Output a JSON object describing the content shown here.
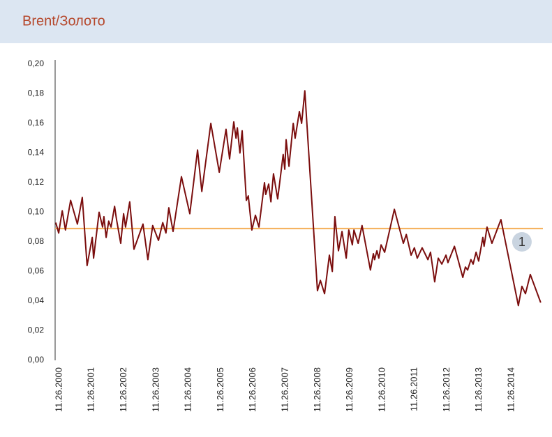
{
  "chart_data": {
    "type": "line",
    "title": "Brent/Золото",
    "series": [
      {
        "name": "Brent/Золото",
        "color": "#7b0e0e",
        "x": [
          2000.79,
          2000.88,
          2000.99,
          2001.09,
          2001.25,
          2001.46,
          2001.61,
          2001.76,
          2001.92,
          2001.96,
          2002.13,
          2002.24,
          2002.28,
          2002.35,
          2002.43,
          2002.5,
          2002.61,
          2002.67,
          2002.8,
          2002.89,
          2002.95,
          2003.08,
          2003.21,
          2003.49,
          2003.64,
          2003.79,
          2003.97,
          2004.1,
          2004.2,
          2004.29,
          2004.42,
          2004.68,
          2004.94,
          2005.18,
          2005.31,
          2005.59,
          2005.85,
          2006.06,
          2006.17,
          2006.3,
          2006.37,
          2006.41,
          2006.49,
          2006.56,
          2006.69,
          2006.75,
          2006.86,
          2006.97,
          2007.08,
          2007.25,
          2007.29,
          2007.38,
          2007.45,
          2007.53,
          2007.66,
          2007.83,
          2007.88,
          2007.92,
          2008.01,
          2008.14,
          2008.2,
          2008.33,
          2008.4,
          2008.5,
          2008.89,
          2008.98,
          2009.11,
          2009.26,
          2009.35,
          2009.43,
          2009.54,
          2009.65,
          2009.78,
          2009.86,
          2009.97,
          2010.02,
          2010.15,
          2010.27,
          2010.53,
          2010.62,
          2010.66,
          2010.73,
          2010.79,
          2010.86,
          2010.97,
          2011.27,
          2011.55,
          2011.64,
          2011.79,
          2011.89,
          2011.98,
          2012.13,
          2012.31,
          2012.39,
          2012.52,
          2012.63,
          2012.74,
          2012.87,
          2012.93,
          2013.13,
          2013.39,
          2013.47,
          2013.54,
          2013.64,
          2013.71,
          2013.8,
          2013.88,
          2014.01,
          2014.05,
          2014.14,
          2014.29,
          2014.57,
          2015.11,
          2015.22,
          2015.33,
          2015.48,
          2015.8
        ],
        "values": [
          0.093,
          0.086,
          0.101,
          0.088,
          0.108,
          0.092,
          0.11,
          0.064,
          0.083,
          0.069,
          0.1,
          0.09,
          0.097,
          0.083,
          0.094,
          0.09,
          0.104,
          0.095,
          0.079,
          0.099,
          0.09,
          0.107,
          0.075,
          0.092,
          0.068,
          0.091,
          0.081,
          0.093,
          0.086,
          0.103,
          0.087,
          0.124,
          0.099,
          0.142,
          0.114,
          0.16,
          0.127,
          0.156,
          0.136,
          0.161,
          0.15,
          0.157,
          0.14,
          0.155,
          0.108,
          0.111,
          0.088,
          0.098,
          0.09,
          0.12,
          0.112,
          0.119,
          0.107,
          0.126,
          0.109,
          0.139,
          0.129,
          0.149,
          0.131,
          0.16,
          0.15,
          0.168,
          0.16,
          0.182,
          0.047,
          0.054,
          0.045,
          0.071,
          0.06,
          0.097,
          0.074,
          0.087,
          0.069,
          0.088,
          0.078,
          0.088,
          0.079,
          0.091,
          0.061,
          0.072,
          0.068,
          0.074,
          0.069,
          0.078,
          0.073,
          0.102,
          0.079,
          0.085,
          0.071,
          0.076,
          0.069,
          0.076,
          0.068,
          0.073,
          0.053,
          0.069,
          0.065,
          0.071,
          0.066,
          0.077,
          0.056,
          0.063,
          0.061,
          0.068,
          0.065,
          0.073,
          0.067,
          0.083,
          0.077,
          0.09,
          0.079,
          0.095,
          0.037,
          0.05,
          0.045,
          0.058,
          0.039
        ]
      }
    ],
    "reference_line": {
      "value": 0.089,
      "color": "#f5b05a"
    },
    "annotation": {
      "text": "1",
      "x": 2015.22,
      "y": 0.08
    },
    "xlim": [
      2000.77,
      2015.87
    ],
    "xticks": [
      {
        "value": 2000.9,
        "label": "11.26.2000"
      },
      {
        "value": 2001.9,
        "label": "11.26.2001"
      },
      {
        "value": 2002.9,
        "label": "11.26.2002"
      },
      {
        "value": 2003.9,
        "label": "11.26.2003"
      },
      {
        "value": 2004.9,
        "label": "11.26.2004"
      },
      {
        "value": 2005.9,
        "label": "11.26.2005"
      },
      {
        "value": 2006.9,
        "label": "11.26.2006"
      },
      {
        "value": 2007.9,
        "label": "11.26.2007"
      },
      {
        "value": 2008.9,
        "label": "11.26.2008"
      },
      {
        "value": 2009.9,
        "label": "11.26.2009"
      },
      {
        "value": 2010.9,
        "label": "11.26.2010"
      },
      {
        "value": 2011.9,
        "label": "11.26.2011"
      },
      {
        "value": 2012.9,
        "label": "11.26.2012"
      },
      {
        "value": 2013.9,
        "label": "11.26.2013"
      },
      {
        "value": 2014.9,
        "label": "11.26.2014"
      }
    ],
    "ylim": [
      0,
      0.2
    ],
    "yticks": [
      {
        "value": 0,
        "label": "0,00"
      },
      {
        "value": 0.02,
        "label": "0,02"
      },
      {
        "value": 0.04,
        "label": "0,04"
      },
      {
        "value": 0.06,
        "label": "0,06"
      },
      {
        "value": 0.08,
        "label": "0,08"
      },
      {
        "value": 0.1,
        "label": "0,10"
      },
      {
        "value": 0.12,
        "label": "0,12"
      },
      {
        "value": 0.14,
        "label": "0,14"
      },
      {
        "value": 0.16,
        "label": "0,16"
      },
      {
        "value": 0.18,
        "label": "0,18"
      },
      {
        "value": 0.2,
        "label": "0,20"
      }
    ],
    "grid": false
  }
}
